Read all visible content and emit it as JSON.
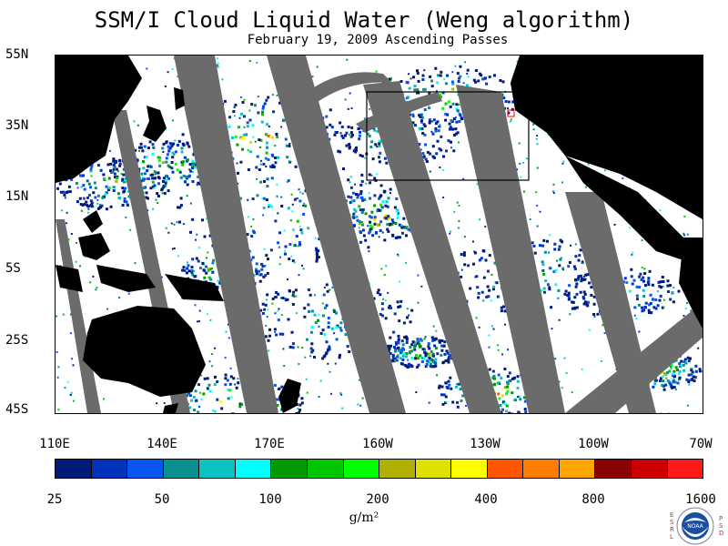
{
  "title": "SSM/I Cloud Liquid Water (Weng algorithm)",
  "subtitle": "February 19, 2009  Ascending Passes",
  "latitude_labels": [
    "55N",
    "35N",
    "15N",
    "5S",
    "25S",
    "45S"
  ],
  "longitude_labels": [
    "110E",
    "140E",
    "170E",
    "160W",
    "130W",
    "100W",
    "70W"
  ],
  "colorbar": {
    "colors": [
      "#001a7a",
      "#0033bb",
      "#0a55f2",
      "#0a9090",
      "#0ac4c4",
      "#00ffff",
      "#009a00",
      "#00c800",
      "#00ff00",
      "#b0b000",
      "#e0e000",
      "#ffff00",
      "#ff5500",
      "#ff7d00",
      "#ffa500",
      "#8b0000",
      "#cc0000",
      "#ff1a1a"
    ],
    "tick_labels": [
      "25",
      "50",
      "100",
      "200",
      "400",
      "800",
      "1600"
    ],
    "unit": "g/m²"
  },
  "logo": {
    "left_text": "ESRL",
    "right_text": "PSD",
    "center_text": "NOAA",
    "icon": "noaa-logo"
  },
  "map_colors": {
    "ocean_no_data": "#ffffff",
    "land": "#000000",
    "swath_gap": "#6b6b6b",
    "box": "#000000"
  }
}
